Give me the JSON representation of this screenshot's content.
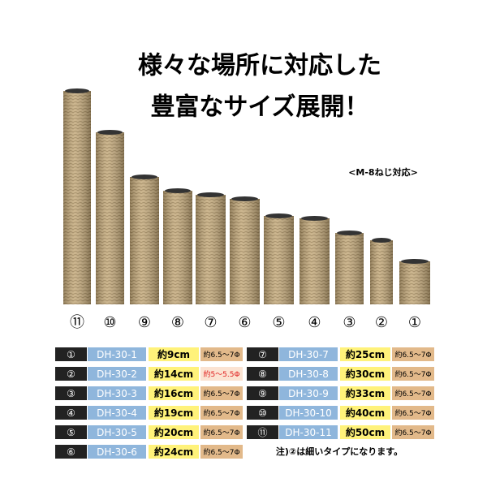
{
  "header": {
    "title_line1": "様々な場所に対応した",
    "title_line2": "豊富なサイズ展開！",
    "note": "<M-8ねじ対応>"
  },
  "posts": [
    "⑪",
    "⑩",
    "⑨",
    "⑧",
    "⑦",
    "⑥",
    "⑤",
    "④",
    "③",
    "②",
    "①"
  ],
  "table": {
    "left": [
      {
        "no": "①",
        "model": "DH-30-1",
        "length": "約9cm",
        "diameter": "約6.5～7Φ"
      },
      {
        "no": "②",
        "model": "DH-30-2",
        "length": "約14cm",
        "diameter": "約5～5.5Φ"
      },
      {
        "no": "③",
        "model": "DH-30-3",
        "length": "約16cm",
        "diameter": "約6.5～7Φ"
      },
      {
        "no": "④",
        "model": "DH-30-4",
        "length": "約19cm",
        "diameter": "約6.5～7Φ"
      },
      {
        "no": "⑤",
        "model": "DH-30-5",
        "length": "約20cm",
        "diameter": "約6.5～7Φ"
      },
      {
        "no": "⑥",
        "model": "DH-30-6",
        "length": "約24cm",
        "diameter": "約6.5～7Φ"
      }
    ],
    "right": [
      {
        "no": "⑦",
        "model": "DH-30-7",
        "length": "約25cm",
        "diameter": "約6.5～7Φ"
      },
      {
        "no": "⑧",
        "model": "DH-30-8",
        "length": "約30cm",
        "diameter": "約6.5～7Φ"
      },
      {
        "no": "⑨",
        "model": "DH-30-9",
        "length": "約33cm",
        "diameter": "約6.5～7Φ"
      },
      {
        "no": "⑩",
        "model": "DH-30-10",
        "length": "約40cm",
        "diameter": "約6.5～7Φ"
      },
      {
        "no": "⑪",
        "model": "DH-30-11",
        "length": "約50cm",
        "diameter": "約6.5～7Φ"
      }
    ]
  },
  "footnote": "注)②は細いタイプになります。"
}
